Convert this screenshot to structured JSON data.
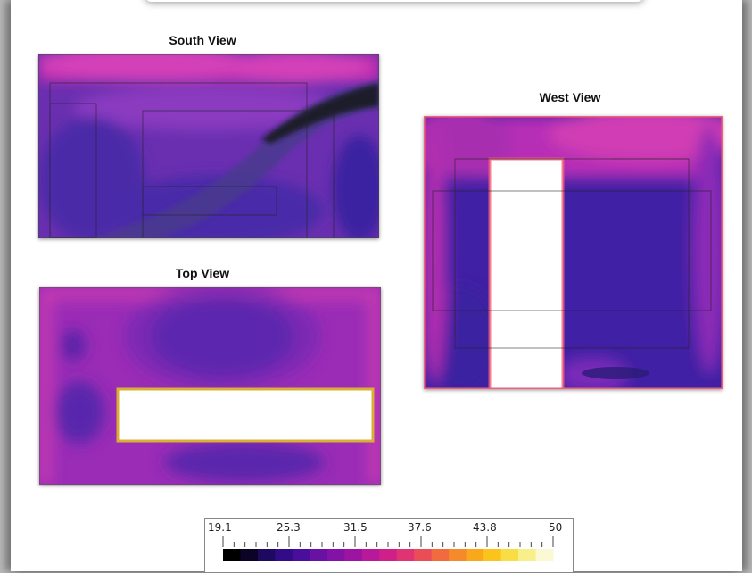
{
  "views": {
    "south_title": "South View",
    "west_title": "West View",
    "top_title": "Top View"
  },
  "legend": {
    "ticks": [
      "19.1",
      "25.3",
      "31.5",
      "37.6",
      "43.8",
      "50"
    ],
    "colors": [
      "#000000",
      "#0b0426",
      "#1d0a60",
      "#320c87",
      "#4a0e9c",
      "#6811a3",
      "#8312a6",
      "#9d14a3",
      "#b8199a",
      "#cf2089",
      "#e03372",
      "#ea4d58",
      "#f16b3e",
      "#f6892a",
      "#f9a81b",
      "#fbc41c",
      "#f8dd45",
      "#f6ef8a",
      "#fbf9d4"
    ]
  }
}
